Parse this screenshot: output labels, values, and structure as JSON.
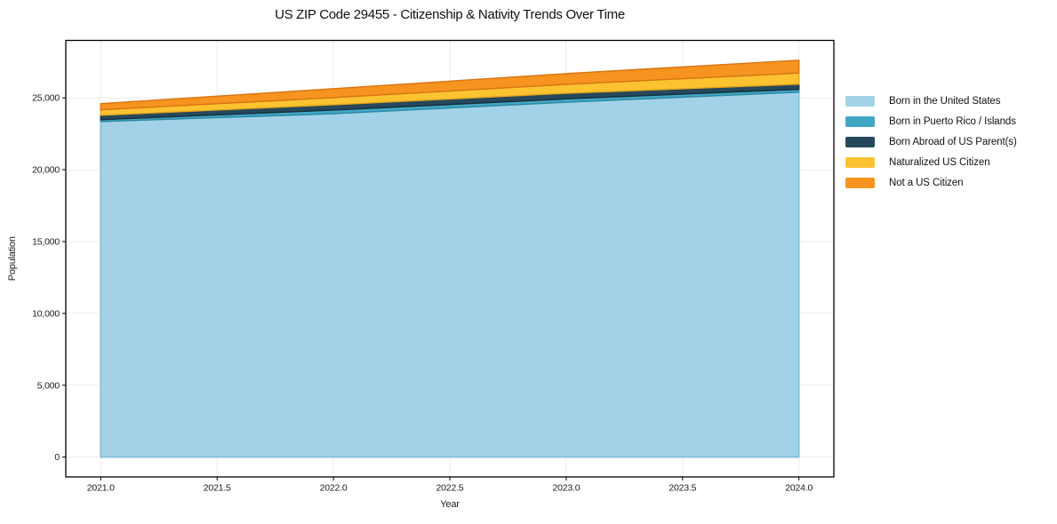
{
  "chart_data": {
    "type": "area",
    "stacked": true,
    "title": "US ZIP Code 29455 - Citizenship & Nativity Trends Over Time",
    "xlabel": "Year",
    "ylabel": "Population",
    "x": [
      2021,
      2022,
      2023,
      2024
    ],
    "series": [
      {
        "name": "Born in the United States",
        "color": "#a3d2e8",
        "edge": "#79b7d7",
        "values": [
          23350,
          23900,
          24700,
          25400
        ]
      },
      {
        "name": "Born in Puerto Rico / Islands",
        "color": "#42a7c4",
        "edge": "#2c89a4",
        "values": [
          130,
          250,
          230,
          200
        ]
      },
      {
        "name": "Born Abroad of US Parent(s)",
        "color": "#26485c",
        "edge": "#16303f",
        "values": [
          310,
          370,
          390,
          350
        ]
      },
      {
        "name": "Naturalized US Citizen",
        "color": "#fcc331",
        "edge": "#e2a41c",
        "values": [
          380,
          500,
          620,
          780
        ]
      },
      {
        "name": "Not a US Citizen",
        "color": "#f6941f",
        "edge": "#d87414",
        "values": [
          430,
          620,
          750,
          890
        ]
      }
    ],
    "xticks": [
      2021.0,
      2021.5,
      2022.0,
      2022.5,
      2023.0,
      2023.5,
      2024.0
    ],
    "xtick_labels": [
      "2021.0",
      "2021.5",
      "2022.0",
      "2022.5",
      "2023.0",
      "2023.5",
      "2024.0"
    ],
    "yticks": [
      0,
      5000,
      10000,
      15000,
      20000,
      25000
    ],
    "ytick_labels": [
      "0",
      "5,000",
      "10,000",
      "15,000",
      "20,000",
      "25,000"
    ],
    "xlim": [
      2020.85,
      2024.15
    ],
    "ylim": [
      -1380,
      29000
    ],
    "grid": true,
    "grid_color": "#ebebeb",
    "frame_color": "#000000",
    "legend_position": "right-outside"
  }
}
